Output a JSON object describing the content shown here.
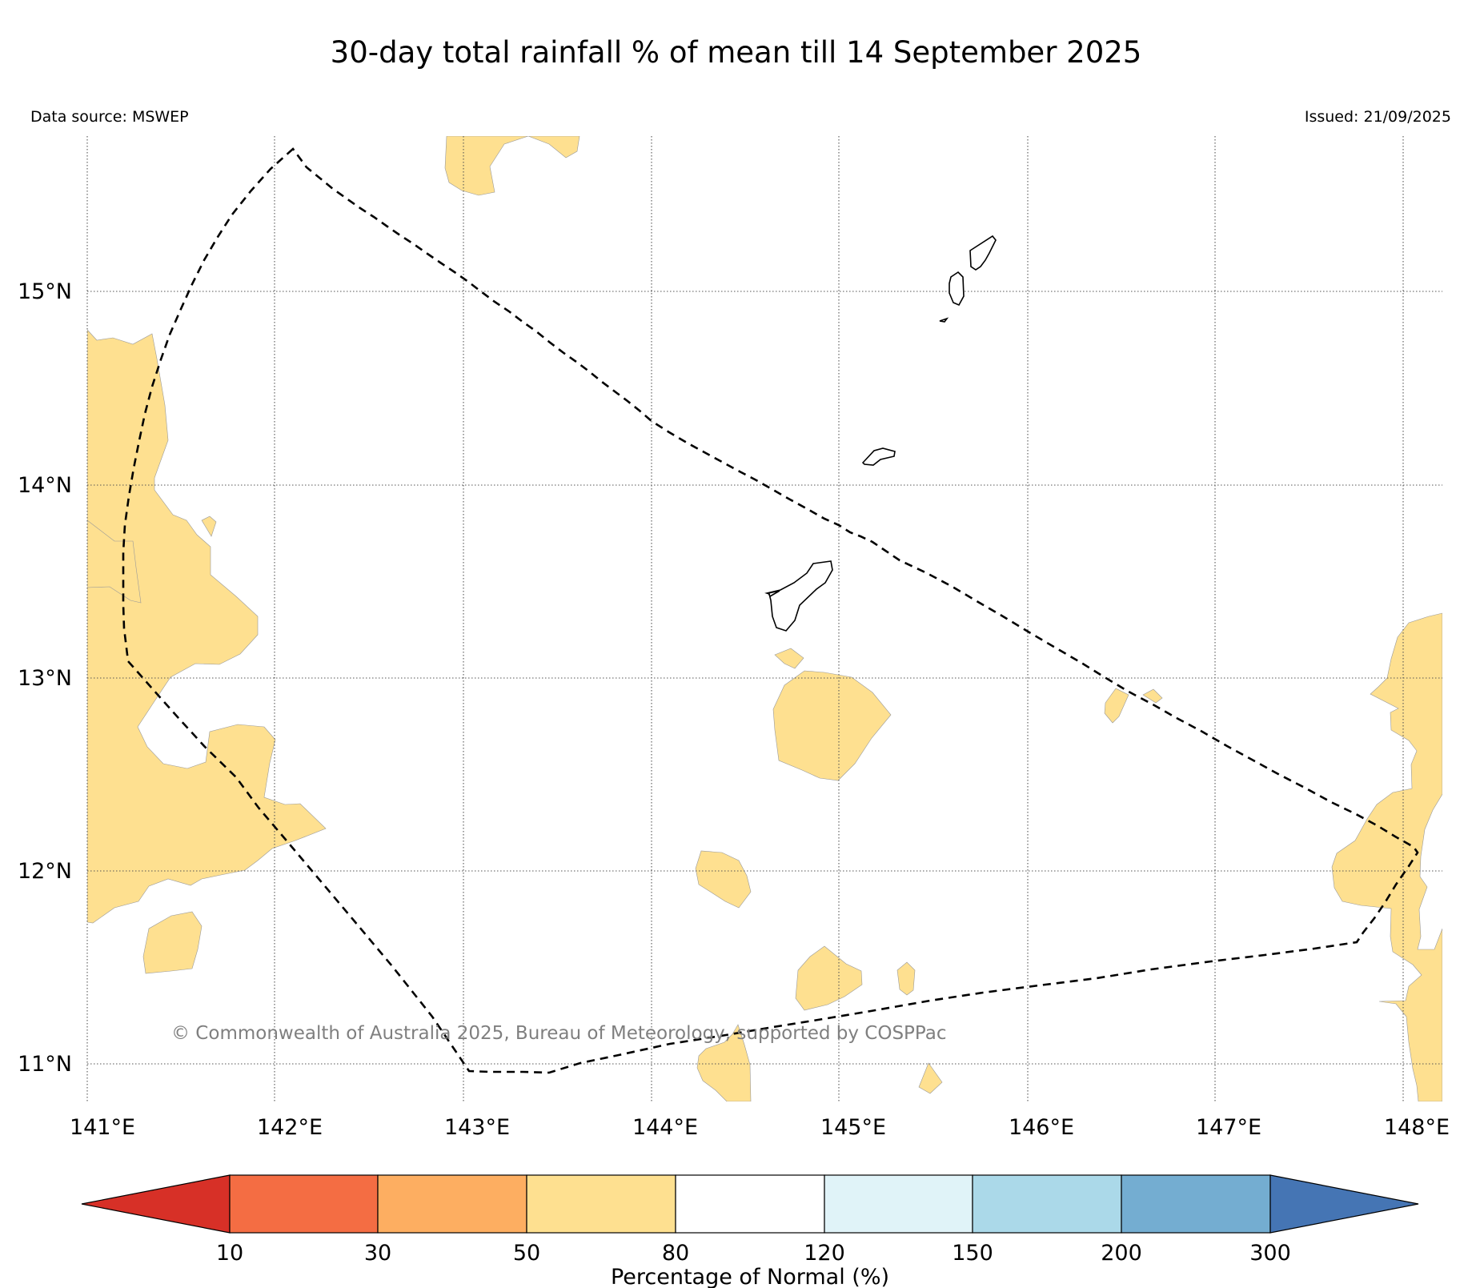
{
  "title": "30-day total rainfall % of mean till 14 September 2025",
  "data_source": "Data source: MSWEP",
  "issued": "Issued: 21/09/2025",
  "copyright": "© Commonwealth of Australia 2025, Bureau of Meteorology, supported by COSPPac",
  "map": {
    "lon_range": [
      141,
      148.2
    ],
    "lat_range": [
      10.8,
      15.8
    ],
    "lon_ticks": [
      141,
      142,
      143,
      144,
      145,
      146,
      147,
      148
    ],
    "lat_ticks": [
      11,
      12,
      13,
      14,
      15
    ],
    "lon_labels": [
      "141°E",
      "142°E",
      "143°E",
      "144°E",
      "145°E",
      "146°E",
      "147°E",
      "148°E"
    ],
    "lat_labels": [
      "11°N",
      "12°N",
      "13°N",
      "14°N",
      "15°N"
    ],
    "boundary_style": "dashed",
    "islands": [
      "Guam",
      "Rota",
      "Tinian",
      "Saipan"
    ]
  },
  "legend": {
    "title": "Percentage of Normal (%)",
    "boundaries": [
      "10",
      "30",
      "50",
      "80",
      "120",
      "150",
      "200",
      "300"
    ],
    "colors": [
      "#d73027",
      "#f46d43",
      "#fdae61",
      "#fee090",
      "#ffffff",
      "#e0f3f8",
      "#abd9e9",
      "#74add1",
      "#4575b4"
    ],
    "under_color": "#d73027",
    "over_color": "#4575b4"
  }
}
